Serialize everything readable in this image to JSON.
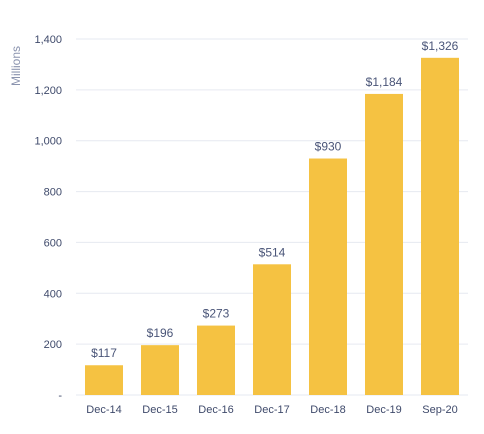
{
  "chart_data": {
    "type": "bar",
    "ylabel": "Millions",
    "categories": [
      "Dec-14",
      "Dec-15",
      "Dec-16",
      "Dec-17",
      "Dec-18",
      "Dec-19",
      "Sep-20"
    ],
    "values": [
      117,
      196,
      273,
      514,
      930,
      1184,
      1326
    ],
    "data_labels": [
      "$117",
      "$196",
      "$273",
      "$514",
      "$930",
      "$1,184",
      "$1,326"
    ],
    "ylim": [
      0,
      1400
    ],
    "yticks": [
      0,
      200,
      400,
      600,
      800,
      1000,
      1200,
      1400
    ],
    "ytick_labels": [
      "-",
      "200",
      "400",
      "600",
      "800",
      "1,000",
      "1,200",
      "1,400"
    ],
    "grid": true,
    "legend": "none",
    "colors": {
      "bar": "#F5C242",
      "grid": "#E6E9F0",
      "axis_text": "#3F4A6B",
      "label_text": "#4A5578",
      "ylabel_text": "#8A93AE"
    }
  }
}
